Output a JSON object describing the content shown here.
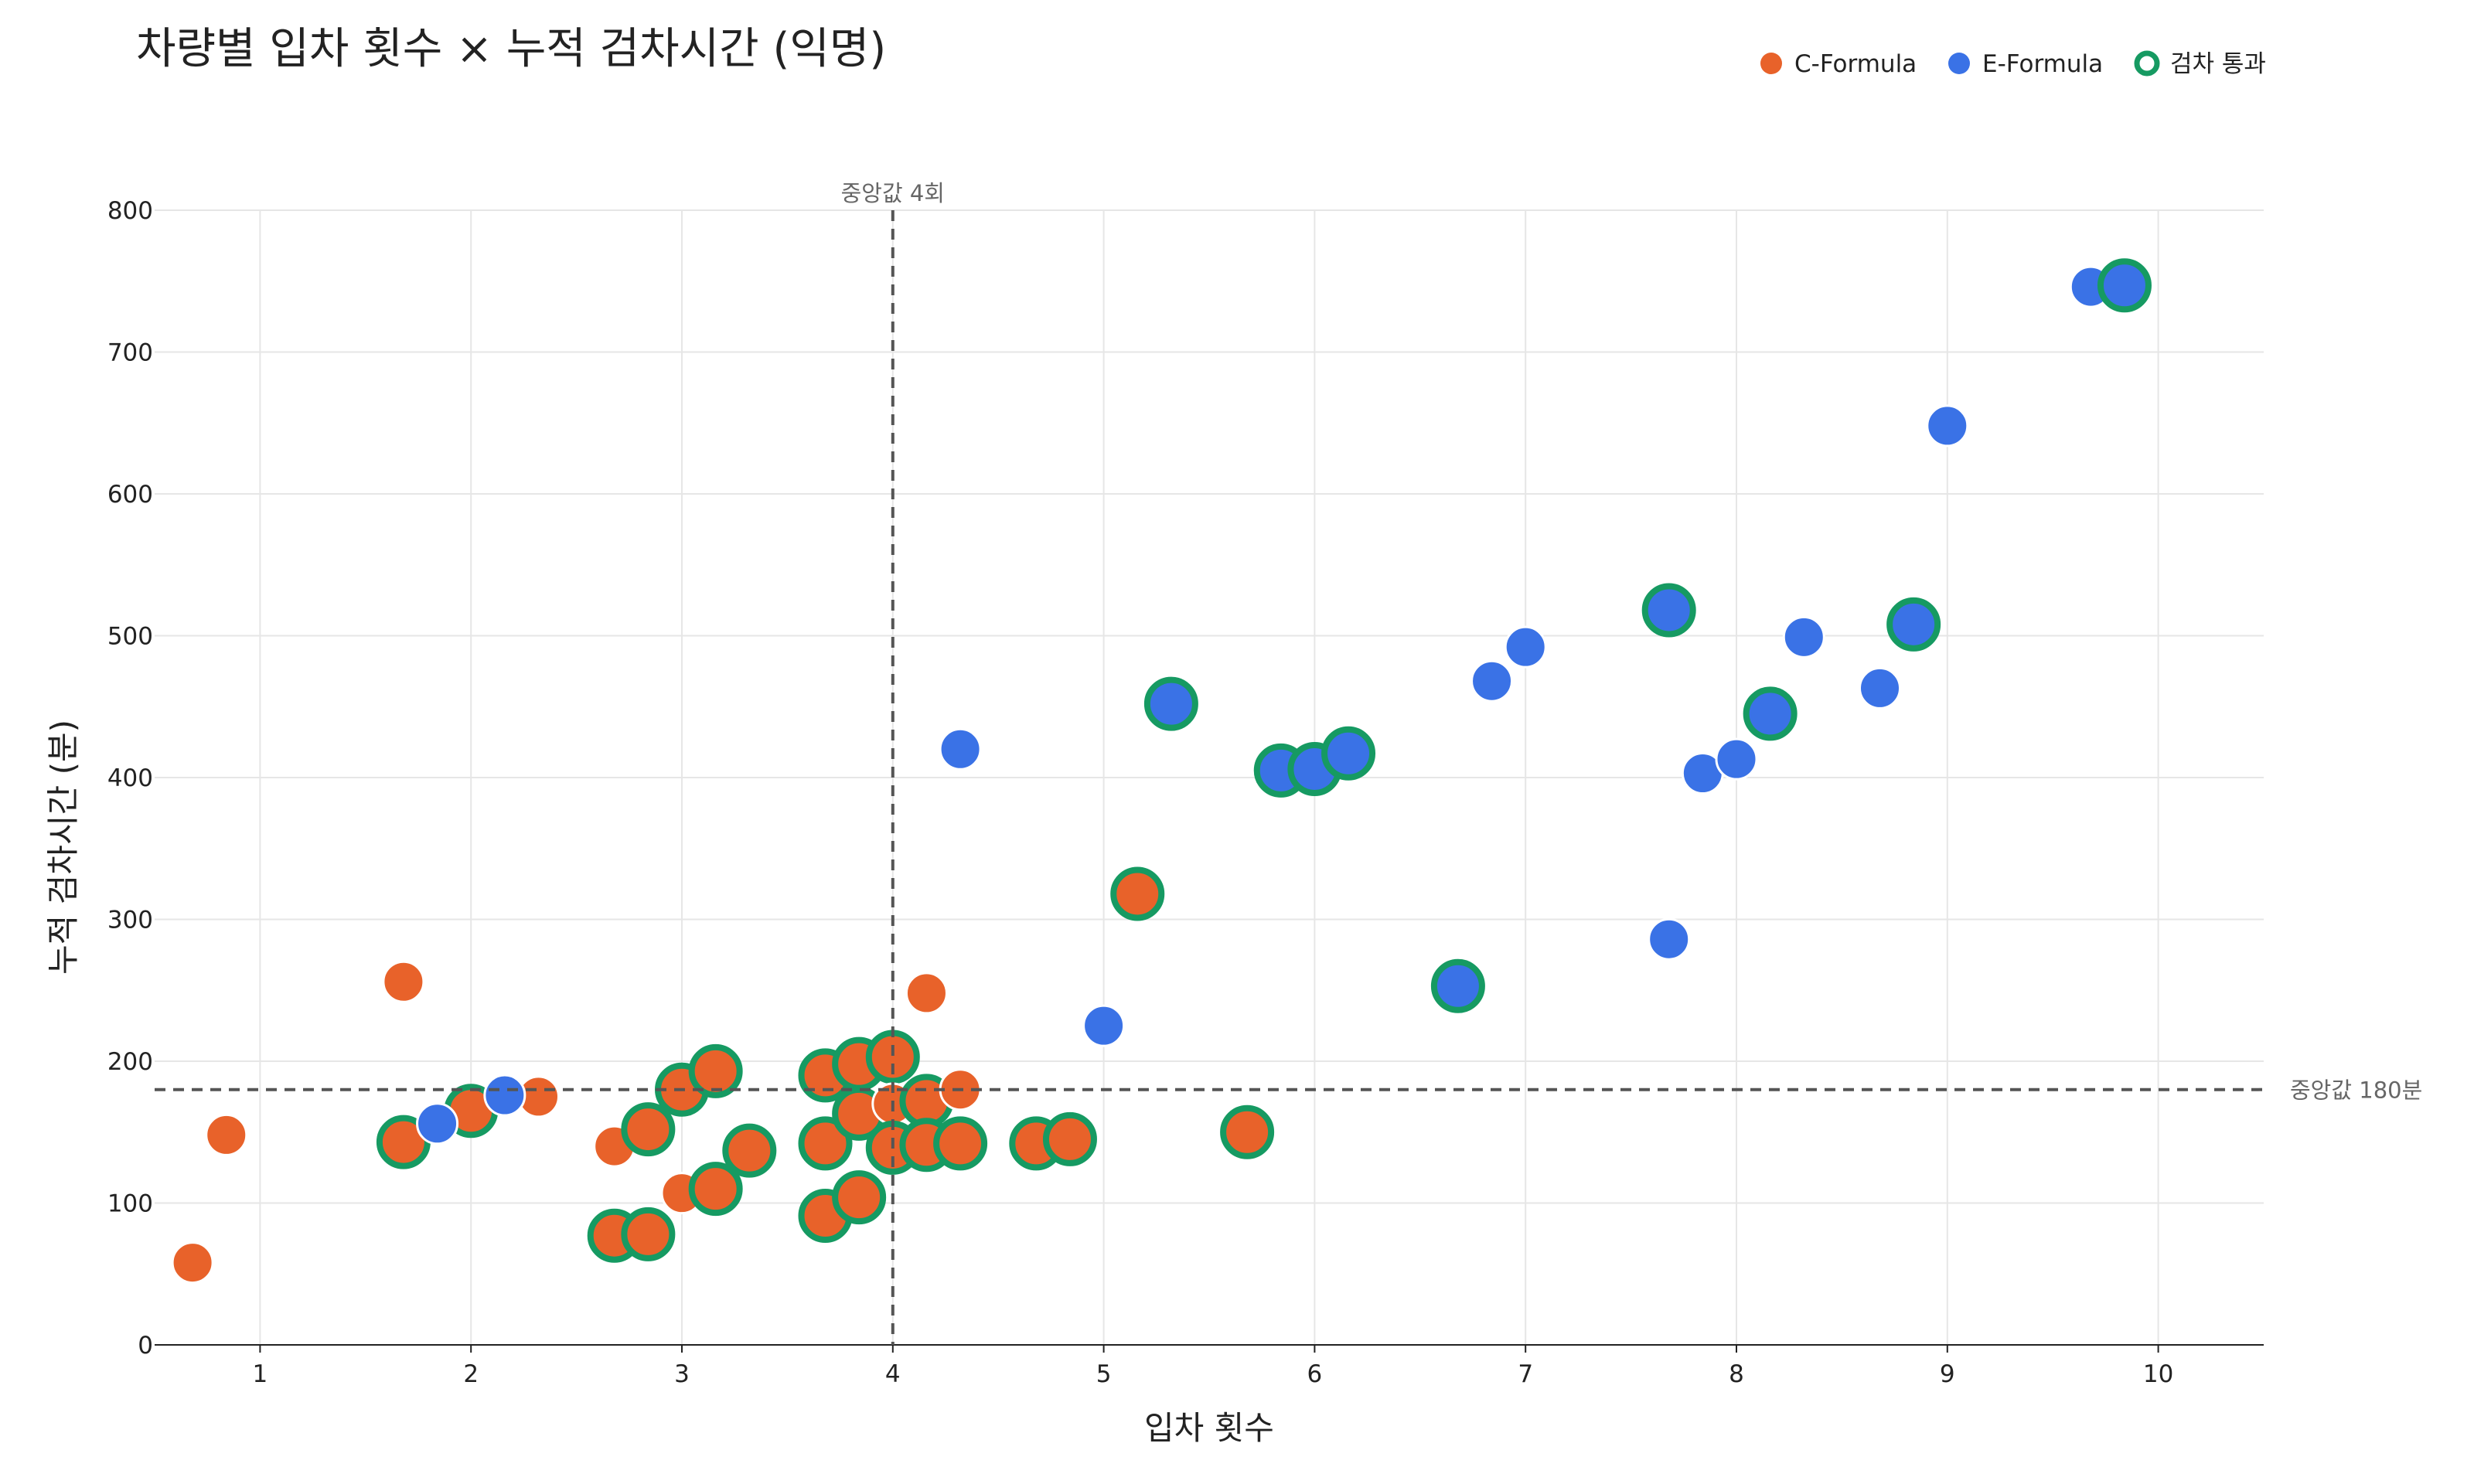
{
  "chart_data": {
    "type": "scatter",
    "title": "차량별 입차 횟수 × 누적 검차시간 (익명)",
    "xlabel": "입차 횟수",
    "ylabel": "누적 검차시간 (분)",
    "xlim": [
      0.5,
      10.5
    ],
    "ylim": [
      0,
      800
    ],
    "xticks": [
      1,
      2,
      3,
      4,
      5,
      6,
      7,
      8,
      9,
      10
    ],
    "yticks": [
      0,
      100,
      200,
      300,
      400,
      500,
      600,
      700,
      800
    ],
    "grid": true,
    "legend_position": "top-right",
    "colors": {
      "C-Formula": "#e8622a",
      "E-Formula": "#3a72e6",
      "pass_ring": "#169a62"
    },
    "legend": [
      {
        "label": "C-Formula",
        "kind": "dot",
        "color": "#e8622a"
      },
      {
        "label": "E-Formula",
        "kind": "dot",
        "color": "#3a72e6"
      },
      {
        "label": "검차 통과",
        "kind": "ring",
        "color": "#169a62"
      }
    ],
    "reference_lines": [
      {
        "axis": "x",
        "value": 4,
        "label": "중앙값 4회"
      },
      {
        "axis": "y",
        "value": 180,
        "label": "중앙값 180분"
      }
    ],
    "series": [
      {
        "name": "C-Formula",
        "points": [
          {
            "x": 0.68,
            "y": 58,
            "pass": false
          },
          {
            "x": 0.84,
            "y": 148,
            "pass": false
          },
          {
            "x": 1.68,
            "y": 256,
            "pass": false
          },
          {
            "x": 1.68,
            "y": 143,
            "pass": true
          },
          {
            "x": 2.0,
            "y": 165,
            "pass": true
          },
          {
            "x": 2.32,
            "y": 175,
            "pass": false
          },
          {
            "x": 2.68,
            "y": 140,
            "pass": false
          },
          {
            "x": 2.68,
            "y": 77,
            "pass": true
          },
          {
            "x": 2.84,
            "y": 78,
            "pass": true
          },
          {
            "x": 2.84,
            "y": 152,
            "pass": true
          },
          {
            "x": 3.0,
            "y": 107,
            "pass": false
          },
          {
            "x": 3.0,
            "y": 180,
            "pass": true
          },
          {
            "x": 3.16,
            "y": 193,
            "pass": true
          },
          {
            "x": 3.16,
            "y": 110,
            "pass": true
          },
          {
            "x": 3.32,
            "y": 137,
            "pass": true
          },
          {
            "x": 3.68,
            "y": 190,
            "pass": true
          },
          {
            "x": 3.68,
            "y": 142,
            "pass": true
          },
          {
            "x": 3.68,
            "y": 91,
            "pass": true
          },
          {
            "x": 3.84,
            "y": 198,
            "pass": true
          },
          {
            "x": 3.84,
            "y": 163,
            "pass": true
          },
          {
            "x": 3.84,
            "y": 104,
            "pass": true
          },
          {
            "x": 4.0,
            "y": 203,
            "pass": true
          },
          {
            "x": 4.0,
            "y": 170,
            "pass": false
          },
          {
            "x": 4.0,
            "y": 139,
            "pass": true
          },
          {
            "x": 4.16,
            "y": 248,
            "pass": false
          },
          {
            "x": 4.16,
            "y": 172,
            "pass": true
          },
          {
            "x": 4.16,
            "y": 141,
            "pass": true
          },
          {
            "x": 4.32,
            "y": 180,
            "pass": false
          },
          {
            "x": 4.32,
            "y": 142,
            "pass": true
          },
          {
            "x": 4.68,
            "y": 142,
            "pass": true
          },
          {
            "x": 4.84,
            "y": 145,
            "pass": true
          },
          {
            "x": 5.16,
            "y": 318,
            "pass": true
          },
          {
            "x": 5.68,
            "y": 150,
            "pass": true
          }
        ]
      },
      {
        "name": "E-Formula",
        "points": [
          {
            "x": 1.84,
            "y": 156,
            "pass": false
          },
          {
            "x": 2.16,
            "y": 176,
            "pass": false
          },
          {
            "x": 4.32,
            "y": 420,
            "pass": false
          },
          {
            "x": 5.0,
            "y": 225,
            "pass": false
          },
          {
            "x": 5.32,
            "y": 452,
            "pass": true
          },
          {
            "x": 5.84,
            "y": 405,
            "pass": true
          },
          {
            "x": 6.0,
            "y": 406,
            "pass": true
          },
          {
            "x": 6.16,
            "y": 417,
            "pass": true
          },
          {
            "x": 6.68,
            "y": 253,
            "pass": true
          },
          {
            "x": 6.84,
            "y": 468,
            "pass": false
          },
          {
            "x": 7.0,
            "y": 492,
            "pass": false
          },
          {
            "x": 7.68,
            "y": 518,
            "pass": true
          },
          {
            "x": 7.68,
            "y": 286,
            "pass": false
          },
          {
            "x": 7.84,
            "y": 403,
            "pass": false
          },
          {
            "x": 8.0,
            "y": 413,
            "pass": false
          },
          {
            "x": 8.16,
            "y": 445,
            "pass": true
          },
          {
            "x": 8.32,
            "y": 499,
            "pass": false
          },
          {
            "x": 8.68,
            "y": 463,
            "pass": false
          },
          {
            "x": 8.84,
            "y": 508,
            "pass": true
          },
          {
            "x": 9.0,
            "y": 648,
            "pass": false
          },
          {
            "x": 9.68,
            "y": 746,
            "pass": false
          },
          {
            "x": 9.84,
            "y": 747,
            "pass": true
          }
        ]
      }
    ]
  }
}
